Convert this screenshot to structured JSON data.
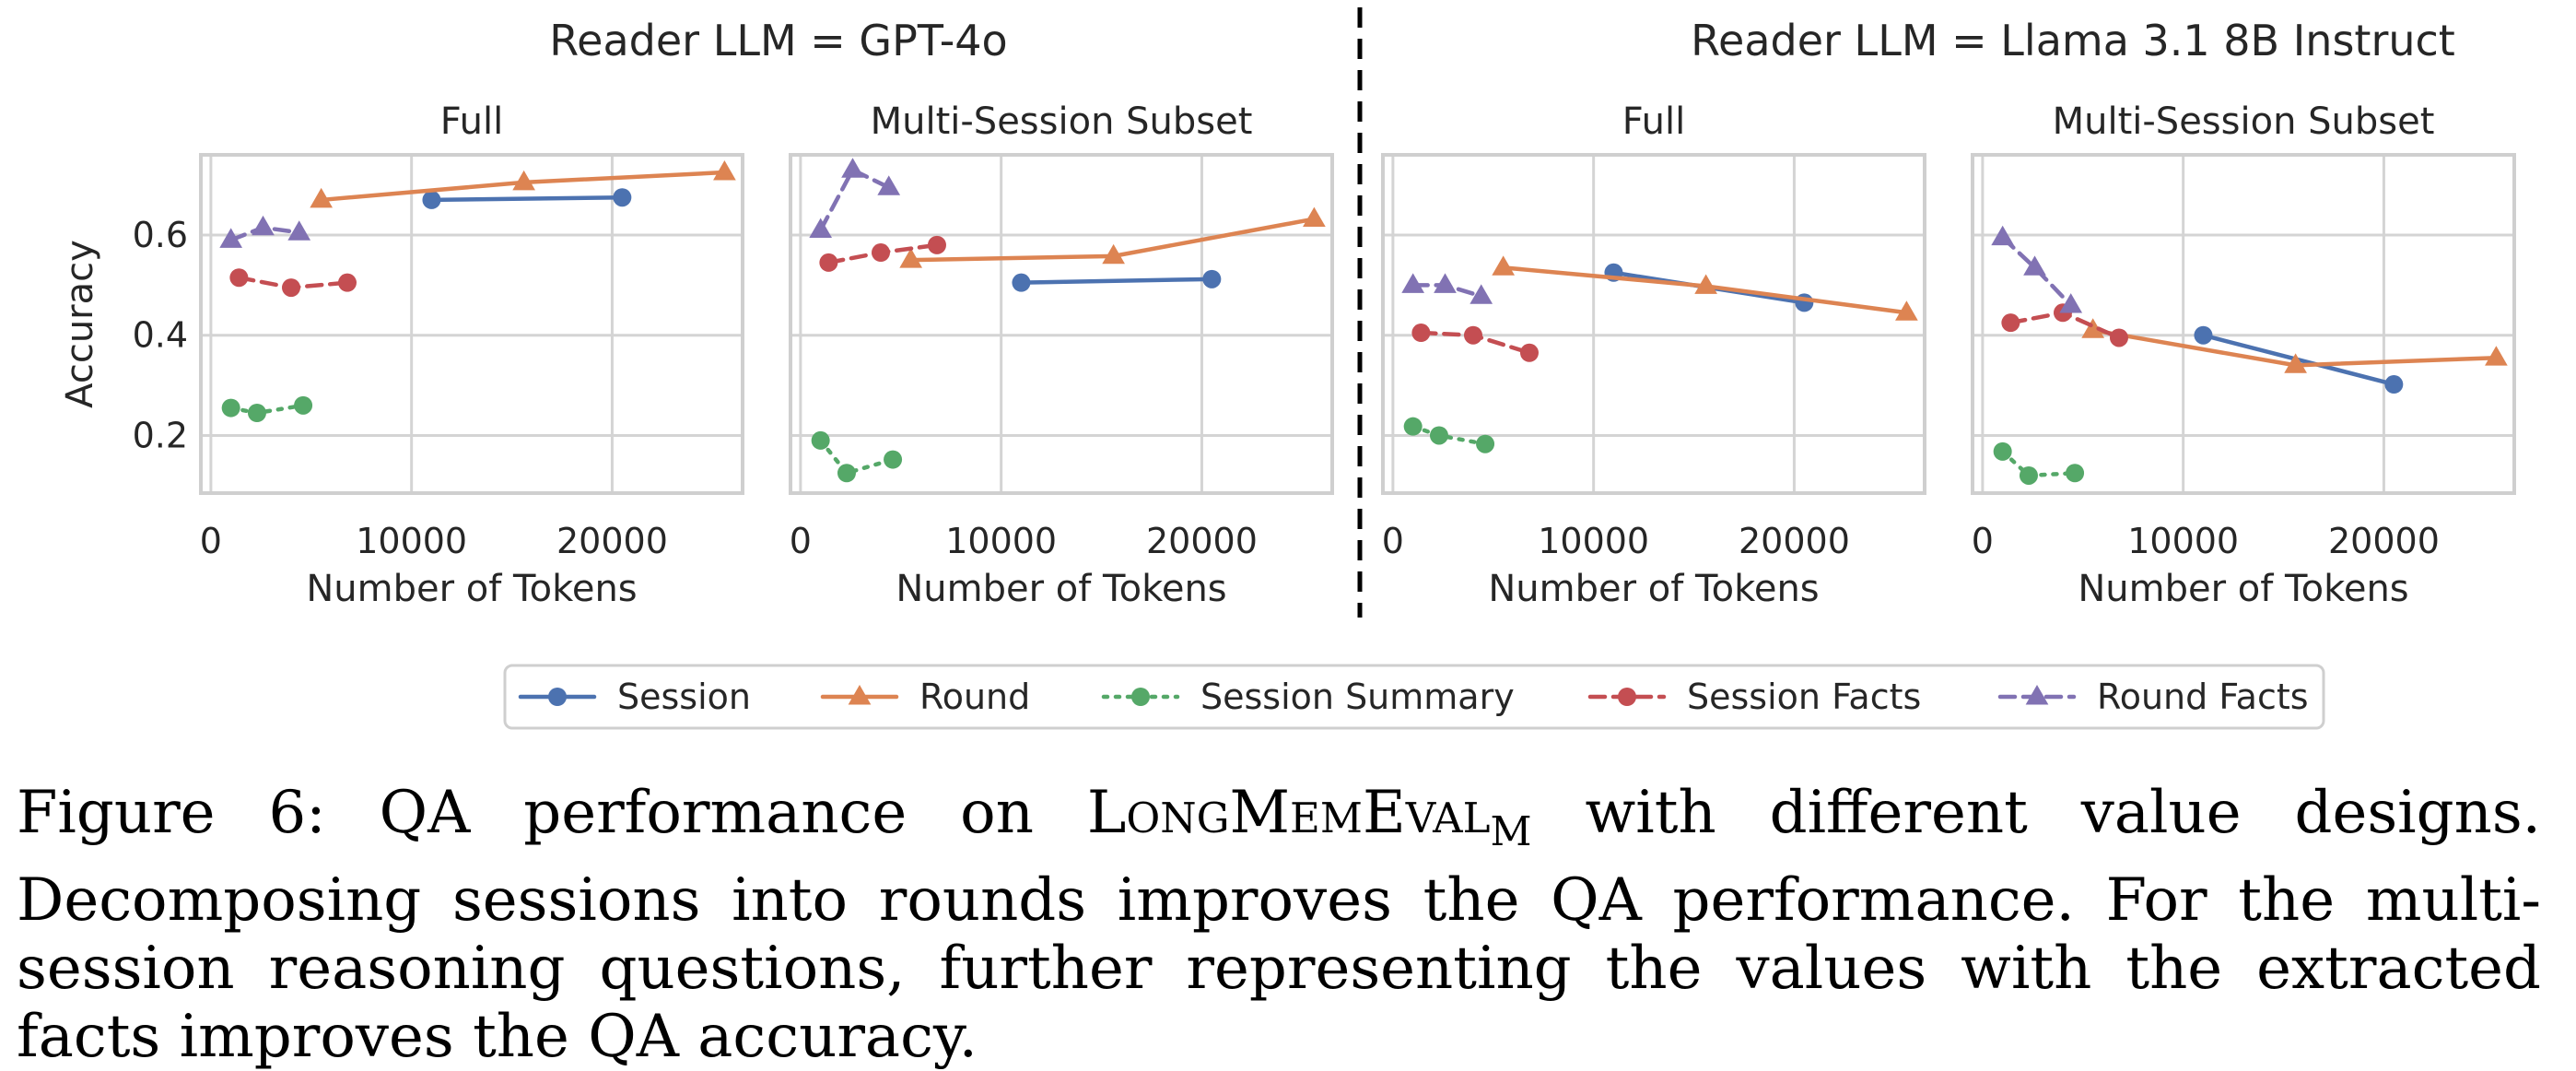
{
  "group_titles": [
    "Reader LLM = GPT-4o",
    "Reader LLM = Llama 3.1 8B Instruct"
  ],
  "legend": [
    {
      "name": "Session",
      "color": "#4c72b0",
      "marker": "circle",
      "dash": "solid"
    },
    {
      "name": "Round",
      "color": "#dd8452",
      "marker": "triangle",
      "dash": "solid"
    },
    {
      "name": "Session Summary",
      "color": "#55a868",
      "marker": "circle",
      "dash": "dotted"
    },
    {
      "name": "Session Facts",
      "color": "#c44e52",
      "marker": "circle",
      "dash": "dashed"
    },
    {
      "name": "Round Facts",
      "color": "#8172b3",
      "marker": "triangle",
      "dash": "dashed"
    }
  ],
  "chart_data": [
    {
      "type": "line",
      "group": "Reader LLM = GPT-4o",
      "title": "Full",
      "xlabel": "Number of Tokens",
      "ylabel": "Accuracy",
      "xlim": [
        -500,
        26500
      ],
      "ylim": [
        0.085,
        0.76
      ],
      "xticks": [
        0,
        10000,
        20000
      ],
      "xtick_labels": [
        "0",
        "10000",
        "20000"
      ],
      "yticks": [
        0.2,
        0.4,
        0.6
      ],
      "ytick_labels": [
        "0.2",
        "0.4",
        "0.6"
      ],
      "grid": true,
      "series": [
        {
          "name": "Session",
          "x": [
            11000,
            20500
          ],
          "y": [
            0.67,
            0.675
          ]
        },
        {
          "name": "Round",
          "x": [
            5500,
            15600,
            25600
          ],
          "y": [
            0.67,
            0.705,
            0.725
          ]
        },
        {
          "name": "Session Summary",
          "x": [
            1000,
            2300,
            4600
          ],
          "y": [
            0.255,
            0.245,
            0.26
          ]
        },
        {
          "name": "Session Facts",
          "x": [
            1400,
            4000,
            6800
          ],
          "y": [
            0.515,
            0.495,
            0.505
          ]
        },
        {
          "name": "Round Facts",
          "x": [
            1000,
            2600,
            4400
          ],
          "y": [
            0.59,
            0.615,
            0.605
          ]
        }
      ]
    },
    {
      "type": "line",
      "group": "Reader LLM = GPT-4o",
      "title": "Multi-Session Subset",
      "xlabel": "Number of Tokens",
      "ylabel": "",
      "xlim": [
        -500,
        26500
      ],
      "ylim": [
        0.085,
        0.76
      ],
      "xticks": [
        0,
        10000,
        20000
      ],
      "xtick_labels": [
        "0",
        "10000",
        "20000"
      ],
      "yticks": [
        0.2,
        0.4,
        0.6
      ],
      "ytick_labels": [],
      "grid": true,
      "series": [
        {
          "name": "Session",
          "x": [
            11000,
            20500
          ],
          "y": [
            0.505,
            0.512
          ]
        },
        {
          "name": "Round",
          "x": [
            5500,
            15600,
            25600
          ],
          "y": [
            0.55,
            0.558,
            0.632
          ]
        },
        {
          "name": "Session Summary",
          "x": [
            1000,
            2300,
            4600
          ],
          "y": [
            0.19,
            0.125,
            0.152
          ]
        },
        {
          "name": "Session Facts",
          "x": [
            1400,
            4000,
            6800
          ],
          "y": [
            0.545,
            0.565,
            0.58
          ]
        },
        {
          "name": "Round Facts",
          "x": [
            1000,
            2600,
            4400
          ],
          "y": [
            0.61,
            0.73,
            0.695
          ]
        }
      ]
    },
    {
      "type": "line",
      "group": "Reader LLM = Llama 3.1 8B Instruct",
      "title": "Full",
      "xlabel": "Number of Tokens",
      "ylabel": "",
      "xlim": [
        -500,
        26500
      ],
      "ylim": [
        0.085,
        0.76
      ],
      "xticks": [
        0,
        10000,
        20000
      ],
      "xtick_labels": [
        "0",
        "10000",
        "20000"
      ],
      "yticks": [
        0.2,
        0.4,
        0.6
      ],
      "ytick_labels": [],
      "grid": true,
      "series": [
        {
          "name": "Session",
          "x": [
            11000,
            20500
          ],
          "y": [
            0.525,
            0.465
          ]
        },
        {
          "name": "Round",
          "x": [
            5500,
            15600,
            25600
          ],
          "y": [
            0.535,
            0.498,
            0.445
          ]
        },
        {
          "name": "Session Summary",
          "x": [
            1000,
            2300,
            4600
          ],
          "y": [
            0.218,
            0.2,
            0.183
          ]
        },
        {
          "name": "Session Facts",
          "x": [
            1400,
            4000,
            6800
          ],
          "y": [
            0.405,
            0.4,
            0.365
          ]
        },
        {
          "name": "Round Facts",
          "x": [
            1000,
            2600,
            4400
          ],
          "y": [
            0.5,
            0.5,
            0.478
          ]
        }
      ]
    },
    {
      "type": "line",
      "group": "Reader LLM = Llama 3.1 8B Instruct",
      "title": "Multi-Session Subset",
      "xlabel": "Number of Tokens",
      "ylabel": "",
      "xlim": [
        -500,
        26500
      ],
      "ylim": [
        0.085,
        0.76
      ],
      "xticks": [
        0,
        10000,
        20000
      ],
      "xtick_labels": [
        "0",
        "10000",
        "20000"
      ],
      "yticks": [
        0.2,
        0.4,
        0.6
      ],
      "ytick_labels": [],
      "grid": true,
      "series": [
        {
          "name": "Session",
          "x": [
            11000,
            20500
          ],
          "y": [
            0.4,
            0.302
          ]
        },
        {
          "name": "Round",
          "x": [
            5500,
            15600,
            25600
          ],
          "y": [
            0.41,
            0.34,
            0.355
          ]
        },
        {
          "name": "Session Summary",
          "x": [
            1000,
            2300,
            4600
          ],
          "y": [
            0.168,
            0.12,
            0.125
          ]
        },
        {
          "name": "Session Facts",
          "x": [
            1400,
            4000,
            6800
          ],
          "y": [
            0.425,
            0.445,
            0.395
          ]
        },
        {
          "name": "Round Facts",
          "x": [
            1000,
            2600,
            4400
          ],
          "y": [
            0.595,
            0.535,
            0.46
          ]
        }
      ]
    }
  ],
  "caption": {
    "prefix": "Figure 6:  QA performance on ",
    "bench_main": "LongMemEval",
    "bench_sub": "M",
    "suffix": " with different value designs.  Decomposing sessions into rounds improves the QA performance.  For the multi-session reasoning questions, further representing the values with the extracted facts improves the QA accuracy."
  }
}
